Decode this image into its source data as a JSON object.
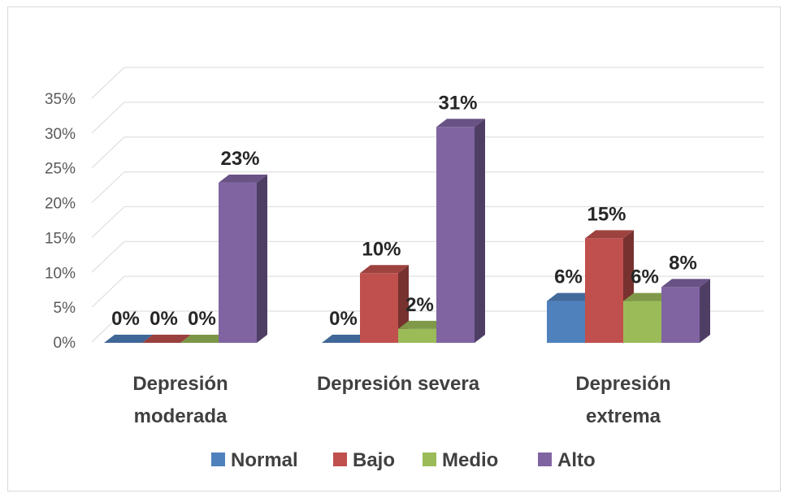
{
  "chart_data": {
    "type": "bar",
    "title": "",
    "xlabel": "",
    "ylabel": "",
    "categories": [
      [
        "Depresión",
        "moderada"
      ],
      [
        "Depresión severa"
      ],
      [
        "Depresión",
        "extrema"
      ]
    ],
    "series": [
      {
        "name": "Normal",
        "color": "#4f81bd",
        "values": [
          0,
          0,
          6
        ],
        "labels": [
          "0%",
          "0%",
          "6%"
        ]
      },
      {
        "name": "Bajo",
        "color": "#c0504d",
        "values": [
          0,
          10,
          15
        ],
        "labels": [
          "0%",
          "10%",
          "15%"
        ]
      },
      {
        "name": "Medio",
        "color": "#9bbb59",
        "values": [
          0,
          2,
          6
        ],
        "labels": [
          "0%",
          "2%",
          "6%"
        ]
      },
      {
        "name": "Alto",
        "color": "#8064a2",
        "values": [
          23,
          31,
          8
        ],
        "labels": [
          "23%",
          "31%",
          "8%"
        ]
      }
    ],
    "ylim": [
      0,
      35
    ],
    "y_ticks": [
      "0%",
      "5%",
      "10%",
      "15%",
      "20%",
      "25%",
      "30%",
      "35%"
    ],
    "grid": true,
    "three_d": true,
    "legend_position": "bottom"
  }
}
